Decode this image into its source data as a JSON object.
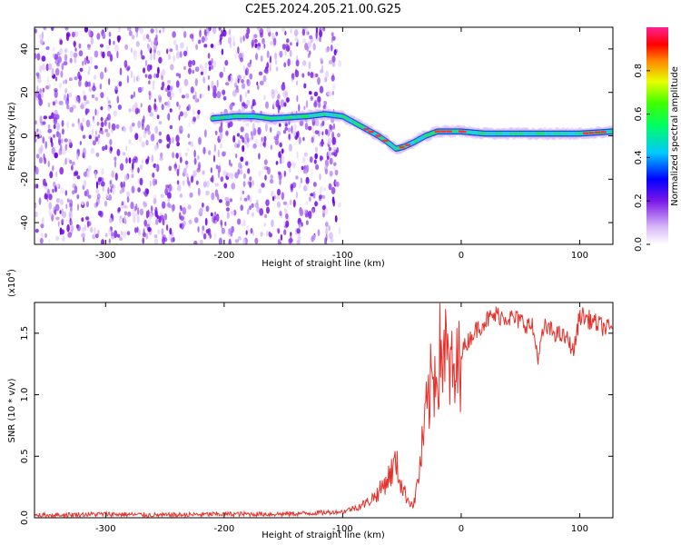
{
  "figure_title": "C2E5.2024.205.21.00.G25",
  "colors": {
    "signal_line": "#e8302a",
    "noise_dots": "#8a2be2",
    "axis": "#000000"
  },
  "chart_data": [
    {
      "type": "heatmap",
      "title": "C2E5.2024.205.21.00.G25",
      "xlabel": "Height of straight line (km)",
      "ylabel": "Frequency (Hz)",
      "xlim": [
        -360,
        128
      ],
      "ylim": [
        -50,
        50
      ],
      "x_ticks": [
        -300,
        -200,
        -100,
        0,
        100
      ],
      "y_ticks": [
        -40,
        -20,
        0,
        20,
        40
      ],
      "colorbar": {
        "label": "Normalized spectral amplitude",
        "range": [
          0,
          1
        ],
        "ticks": [
          "0.0",
          "0.2",
          "0.4",
          "0.6",
          "0.8"
        ]
      },
      "ridge": {
        "x": [
          -210,
          -190,
          -175,
          -160,
          -130,
          -115,
          -100,
          -90,
          -80,
          -70,
          -62,
          -55,
          -48,
          -40,
          -30,
          -20,
          -10,
          0,
          20,
          50,
          80,
          100,
          128
        ],
        "y": [
          8,
          9,
          9,
          8,
          9,
          10,
          9,
          6,
          3,
          0,
          -3,
          -6,
          -5,
          -3,
          0,
          2,
          2,
          2,
          1,
          1,
          1,
          1,
          2
        ]
      },
      "noise_region_x": [
        -360,
        -110
      ]
    },
    {
      "type": "line",
      "xlabel": "Height of straight line (km)",
      "ylabel": "SNR (10 * v/v)",
      "y_multiplier": "(x10^4)",
      "xlim": [
        -360,
        128
      ],
      "ylim": [
        0,
        17500
      ],
      "x_ticks": [
        -300,
        -200,
        -100,
        0,
        100
      ],
      "y_ticks": [
        "0.0",
        "0.5",
        "1.0",
        "1.5"
      ],
      "series": [
        {
          "x": [
            -360,
            -300,
            -250,
            -200,
            -150,
            -120,
            -100,
            -90,
            -80,
            -70,
            -60,
            -55,
            -50,
            -45,
            -40,
            -35,
            -30,
            -25,
            -20,
            -15,
            -10,
            -5,
            0,
            10,
            20,
            30,
            40,
            50,
            60,
            65,
            70,
            80,
            90,
            95,
            100,
            110,
            120,
            128
          ],
          "y": [
            200,
            300,
            200,
            300,
            300,
            400,
            500,
            800,
            1200,
            2000,
            3500,
            4500,
            2500,
            1500,
            1000,
            4000,
            8000,
            11000,
            12500,
            14000,
            12000,
            11000,
            13500,
            15000,
            16000,
            16500,
            16300,
            16000,
            15500,
            13000,
            15500,
            15000,
            14500,
            13500,
            16500,
            16000,
            15500,
            15300
          ]
        }
      ]
    }
  ]
}
